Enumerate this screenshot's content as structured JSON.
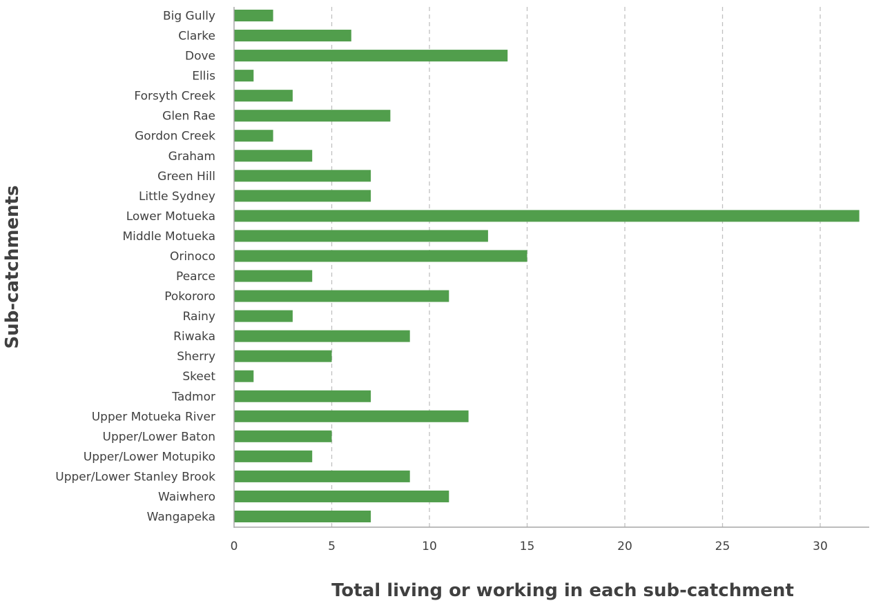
{
  "chart_data": {
    "type": "bar",
    "orientation": "horizontal",
    "title": "",
    "xlabel": "Total living or working in each sub-catchment",
    "ylabel": "Sub-catchments",
    "categories": [
      "Big Gully",
      "Clarke",
      "Dove",
      "Ellis",
      "Forsyth Creek",
      "Glen Rae",
      "Gordon Creek",
      "Graham",
      "Green Hill",
      "Little Sydney",
      "Lower Motueka",
      "Middle Motueka",
      "Orinoco",
      "Pearce",
      "Pokororo",
      "Rainy",
      "Riwaka",
      "Sherry",
      "Skeet",
      "Tadmor",
      "Upper Motueka River",
      "Upper/Lower Baton",
      "Upper/Lower Motupiko",
      "Upper/Lower Stanley Brook",
      "Waiwhero",
      "Wangapeka"
    ],
    "values": [
      2,
      6,
      14,
      1,
      3,
      8,
      2,
      4,
      7,
      7,
      32,
      13,
      15,
      4,
      11,
      3,
      9,
      5,
      1,
      7,
      12,
      5,
      4,
      9,
      11,
      7
    ],
    "xlim": [
      0,
      32.5
    ],
    "xticks": [
      0,
      5,
      10,
      15,
      20,
      25,
      30
    ],
    "grid": "vertical-dashed",
    "legend": "none",
    "bar_color": "#519e4c"
  }
}
